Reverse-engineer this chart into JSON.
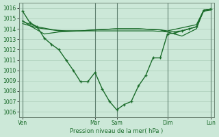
{
  "bg_color": "#cce8d8",
  "grid_color": "#aaccb8",
  "line_color": "#1a6b2a",
  "ylim": [
    1005.5,
    1016.5
  ],
  "yticks": [
    1006,
    1007,
    1008,
    1009,
    1010,
    1011,
    1012,
    1013,
    1014,
    1015,
    1016
  ],
  "xlabel": "Pression niveau de la mer( hPa )",
  "xlabel_color": "#1a6b2a",
  "xtick_labels": [
    "Ven",
    "Mar",
    "Sam",
    "Dim",
    "Lun"
  ],
  "xtick_positions": [
    0,
    10,
    13,
    20,
    26
  ],
  "vline_positions": [
    0,
    10,
    13,
    20,
    26
  ],
  "xlim": [
    -0.5,
    26.5
  ],
  "series_deep": {
    "x": [
      0,
      1,
      2,
      3,
      4,
      5,
      6,
      7,
      8,
      9,
      10,
      11,
      12,
      13,
      14,
      15,
      16,
      17,
      18,
      19,
      20,
      21,
      22,
      23,
      24,
      25,
      26
    ],
    "y": [
      1015.7,
      1014.6,
      1014.2,
      1013.1,
      1012.5,
      1012.0,
      1011.0,
      1010.0,
      1008.9,
      1008.9,
      1009.8,
      1008.2,
      1007.0,
      1006.2,
      1006.7,
      1007.0,
      1008.5,
      1009.5,
      1011.2,
      1011.2,
      1013.5,
      1013.6,
      1013.8,
      1014.0,
      1014.2,
      1015.8,
      1015.9
    ]
  },
  "series_top": {
    "x": [
      0,
      2,
      5,
      8,
      10,
      13,
      16,
      19,
      20,
      22,
      24,
      25,
      26
    ],
    "y": [
      1014.7,
      1014.2,
      1013.8,
      1013.8,
      1013.9,
      1014.0,
      1014.0,
      1013.9,
      1013.8,
      1014.1,
      1014.4,
      1015.8,
      1015.9
    ]
  },
  "series_mid1": {
    "x": [
      0,
      2,
      4,
      6,
      8,
      10,
      12,
      14,
      16,
      18,
      20,
      22,
      24,
      25,
      26
    ],
    "y": [
      1014.5,
      1014.1,
      1013.9,
      1013.8,
      1013.8,
      1013.8,
      1013.8,
      1013.8,
      1013.8,
      1013.8,
      1013.7,
      1013.8,
      1014.2,
      1015.7,
      1015.8
    ]
  },
  "series_mid2": {
    "x": [
      0,
      1,
      3,
      5,
      8,
      10,
      13,
      16,
      19,
      20,
      21,
      22,
      24,
      25,
      26
    ],
    "y": [
      1014.8,
      1014.3,
      1013.5,
      1013.7,
      1013.8,
      1013.9,
      1014.0,
      1014.0,
      1013.9,
      1013.7,
      1013.5,
      1013.3,
      1014.0,
      1015.8,
      1015.9
    ]
  }
}
